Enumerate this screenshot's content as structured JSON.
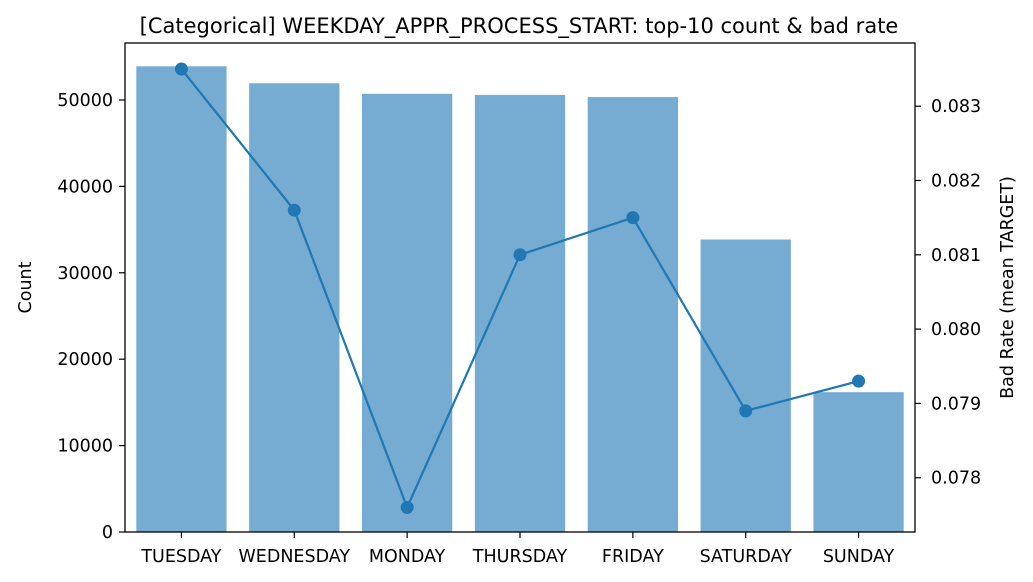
{
  "chart_data": {
    "type": "bar",
    "title": "[Categorical] WEEKDAY_APPR_PROCESS_START: top-10 count & bad rate",
    "xlabel": "",
    "ylabel": "Count",
    "y2label": "Bad Rate (mean TARGET)",
    "categories": [
      "TUESDAY",
      "WEDNESDAY",
      "MONDAY",
      "THURSDAY",
      "FRIDAY",
      "SATURDAY",
      "SUNDAY"
    ],
    "series": [
      {
        "name": "",
        "type": "bar",
        "axis": "left",
        "values": [
          53900,
          51934,
          50714,
          50591,
          50338,
          33852,
          16181
        ]
      },
      {
        "name": "",
        "type": "line",
        "axis": "right",
        "values": [
          0.0835,
          0.0816,
          0.0776,
          0.081,
          0.0815,
          0.0789,
          0.0793
        ]
      }
    ],
    "ylim": [
      0,
      56595
    ],
    "y2lim": [
      0.07727,
      0.08385
    ],
    "yticks": [
      0,
      10000,
      20000,
      30000,
      40000,
      50000
    ],
    "y2ticks": [
      0.078,
      0.079,
      0.08,
      0.081,
      0.082,
      0.083
    ],
    "y2tick_labels": [
      "0.078",
      "0.079",
      "0.080",
      "0.081",
      "0.082",
      "0.083"
    ],
    "grid": false,
    "colors": {
      "bar": "#77acd2",
      "line": "#1f77b4"
    }
  }
}
